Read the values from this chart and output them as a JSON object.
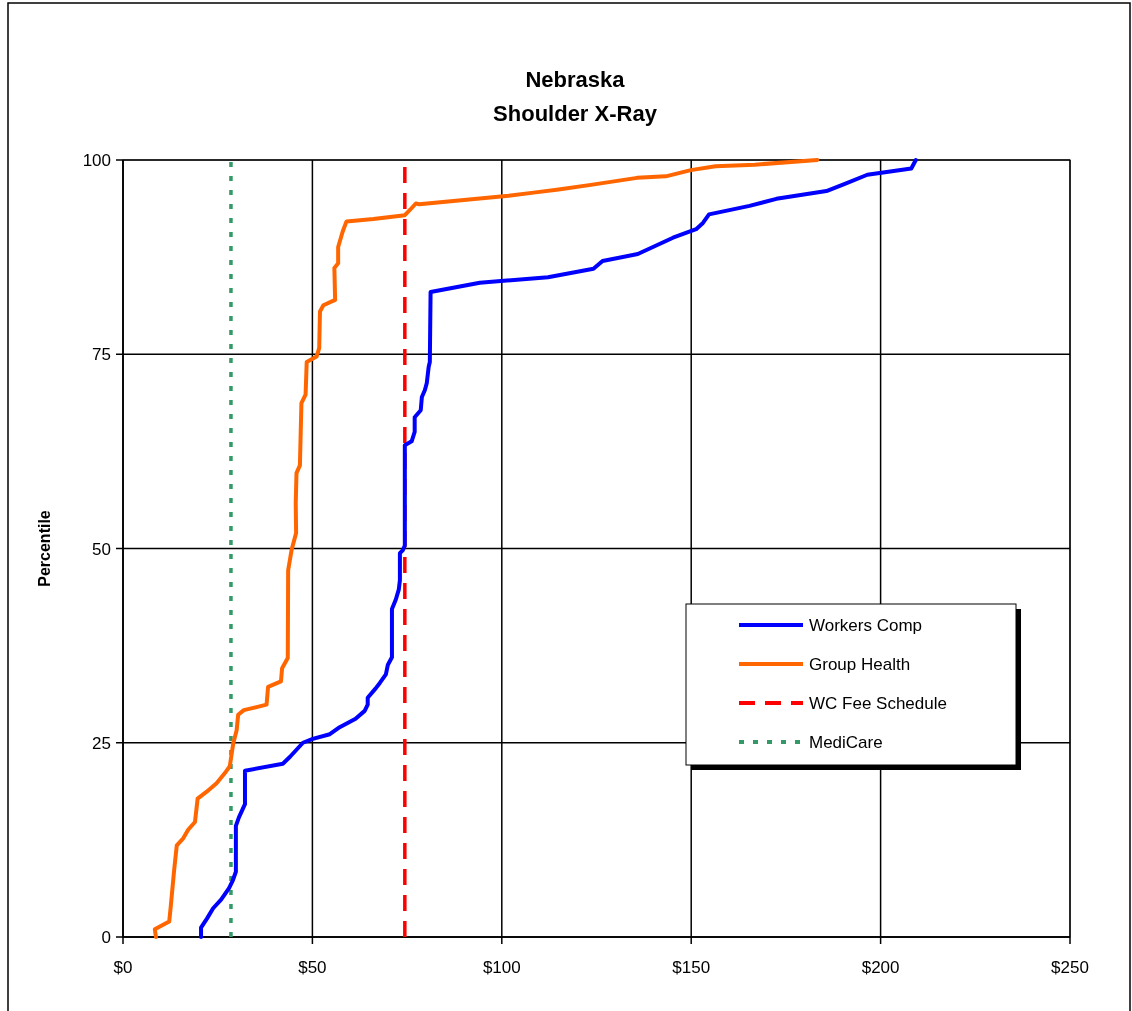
{
  "chart_data": {
    "type": "line",
    "title": "Nebraska",
    "subtitle": "Shoulder X-Ray",
    "ylabel": "Percentile",
    "xlim": [
      0,
      250
    ],
    "ylim": [
      0,
      100
    ],
    "xticks": [
      {
        "value": 0,
        "label": "$0"
      },
      {
        "value": 50,
        "label": "$50"
      },
      {
        "value": 100,
        "label": "$100"
      },
      {
        "value": 150,
        "label": "$150"
      },
      {
        "value": 200,
        "label": "$200"
      },
      {
        "value": 250,
        "label": "$250"
      }
    ],
    "yticks": [
      0,
      25,
      50,
      75,
      100
    ],
    "grid": true,
    "legend": "right",
    "marker": "none",
    "line_style": "solid",
    "series": [
      {
        "name": "Workers Comp",
        "color": "#0000ff",
        "x": [
          20.6,
          20.6,
          22.2,
          23.8,
          25.9,
          28.0,
          29.0,
          29.8,
          29.8,
          30.6,
          32.2,
          32.2,
          42.2,
          44.1,
          47.5,
          50.1,
          54.6,
          57.2,
          61.4,
          63.8,
          64.6,
          64.6,
          66.7,
          67.8,
          69.4,
          69.9,
          71.0,
          71.0,
          72.0,
          72.8,
          73.1,
          73.1,
          73.9,
          74.4,
          74.4,
          76.2,
          77.0,
          77.0,
          78.6,
          78.9,
          79.7,
          80.2,
          80.7,
          81.0,
          81.2,
          94.2,
          112.2,
          124.2,
          126.6,
          135.9,
          145.2,
          151.3,
          153.1,
          154.7,
          165.4,
          172.5,
          185.7,
          190.4,
          196.5,
          208.1,
          209.3
        ],
        "values": [
          0,
          1.2,
          2.4,
          3.7,
          4.8,
          6.3,
          7.3,
          8.4,
          14.3,
          15.4,
          17.1,
          21.4,
          22.3,
          23.2,
          25.0,
          25.5,
          26.1,
          27.0,
          28.1,
          29.1,
          29.9,
          30.8,
          32.0,
          32.7,
          33.8,
          35.0,
          36.0,
          42.2,
          43.4,
          44.7,
          45.9,
          49.4,
          49.8,
          50.4,
          63.3,
          63.8,
          65.0,
          66.9,
          67.8,
          69.5,
          70.4,
          71.3,
          73.4,
          74.0,
          83.0,
          84.2,
          84.9,
          86.0,
          87.0,
          87.9,
          90.0,
          91.1,
          91.9,
          93.0,
          94.1,
          95.0,
          96.0,
          96.9,
          98.1,
          98.9,
          100
        ]
      },
      {
        "name": "Group Health",
        "color": "#ff6600",
        "x": [
          8.7,
          8.4,
          12.2,
          12.6,
          13.5,
          14.2,
          15.9,
          17.2,
          19.0,
          19.7,
          22.1,
          24.7,
          26.9,
          28.2,
          29.1,
          30.0,
          30.4,
          31.9,
          37.9,
          38.3,
          41.7,
          42.0,
          43.5,
          43.6,
          44.5,
          45.7,
          45.6,
          45.8,
          46.7,
          47.1,
          48.2,
          48.5,
          51.1,
          51.8,
          52.0,
          52.9,
          56.0,
          55.8,
          56.8,
          56.8,
          58.0,
          59.0,
          66.1,
          74.4,
          75.8,
          77.3,
          78.2,
          101.8,
          108.4,
          115.0,
          123.5,
          135.7,
          143.3,
          149.9,
          156.4,
          166.8,
          183.3
        ],
        "values": [
          0,
          1.0,
          2.0,
          3.9,
          8.6,
          11.8,
          12.7,
          13.8,
          14.8,
          17.8,
          18.7,
          19.8,
          21.1,
          22.0,
          24.9,
          26.6,
          28.6,
          29.2,
          29.9,
          32.2,
          32.9,
          34.6,
          35.9,
          47.2,
          49.8,
          52.0,
          55.8,
          59.7,
          60.7,
          68.7,
          69.8,
          74.0,
          74.7,
          75.8,
          80.5,
          81.3,
          82.0,
          86.1,
          86.7,
          88.8,
          90.8,
          92.1,
          92.4,
          92.9,
          93.6,
          94.4,
          94.3,
          95.4,
          95.8,
          96.2,
          96.8,
          97.7,
          97.9,
          98.7,
          99.2,
          99.4,
          100
        ]
      },
      {
        "name": "WC Fee Schedule",
        "color": "#ff0000",
        "line_style": "dashed",
        "x": [
          74.4,
          74.4
        ],
        "values": [
          0,
          100
        ]
      },
      {
        "name": "MediCare",
        "color": "#339966",
        "line_style": "dotted",
        "x": [
          28.5,
          28.5
        ],
        "values": [
          0,
          100
        ]
      }
    ]
  }
}
